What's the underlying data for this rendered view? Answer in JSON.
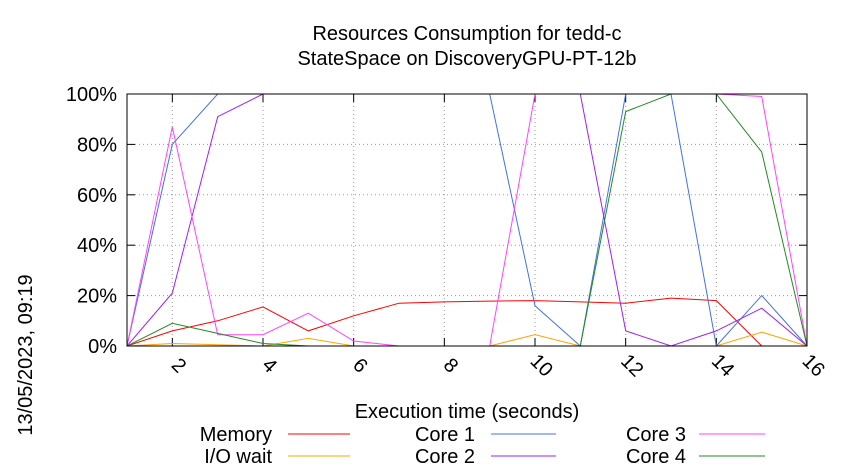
{
  "chart_data": {
    "type": "line",
    "title_lines": [
      "Resources Consumption for tedd-c",
      "StateSpace on DiscoveryGPU-PT-12b"
    ],
    "xlabel": "Execution time (seconds)",
    "ylabel": "",
    "side_label": "13/05/2023, 09:19",
    "xlim": [
      1,
      16
    ],
    "ylim": [
      0,
      100
    ],
    "grid": true,
    "legend_position": "bottom",
    "x_ticks": [
      2,
      4,
      6,
      8,
      10,
      12,
      14,
      16
    ],
    "y_ticks": [
      {
        "value": 0,
        "label": "0%"
      },
      {
        "value": 20,
        "label": "20%"
      },
      {
        "value": 40,
        "label": "40%"
      },
      {
        "value": 60,
        "label": "60%"
      },
      {
        "value": 80,
        "label": "80%"
      },
      {
        "value": 100,
        "label": "100%"
      }
    ],
    "x": [
      1,
      2,
      3,
      4,
      5,
      6,
      7,
      8,
      9,
      10,
      11,
      12,
      13,
      14,
      15,
      16
    ],
    "series": [
      {
        "name": "Memory",
        "color": "#ff0000",
        "values": [
          0,
          6,
          10,
          15.5,
          6,
          12,
          17,
          17.5,
          17.8,
          18,
          17.5,
          17,
          19,
          18,
          0,
          0
        ]
      },
      {
        "name": "I/O wait",
        "color": "#ffa500",
        "values": [
          0,
          1,
          0.5,
          0,
          3,
          0,
          0,
          0,
          0,
          4.5,
          0,
          0,
          0,
          0,
          5.5,
          0
        ]
      },
      {
        "name": "Core 1",
        "color": "#4472e0",
        "values": [
          0,
          80,
          100,
          100,
          100,
          100,
          100,
          100,
          100,
          16,
          0,
          100,
          100,
          0,
          20,
          0
        ]
      },
      {
        "name": "Core 2",
        "color": "#a020f0",
        "values": [
          0,
          21,
          91,
          100,
          100,
          100,
          100,
          100,
          100,
          100,
          100,
          6,
          0,
          6,
          15,
          0
        ]
      },
      {
        "name": "Core 3",
        "color": "#ff44ff",
        "values": [
          0,
          87,
          4.5,
          4.5,
          13,
          2,
          0,
          0,
          0,
          100,
          100,
          100,
          100,
          100,
          99,
          0
        ]
      },
      {
        "name": "Core 4",
        "color": "#228b22",
        "values": [
          0,
          9,
          5,
          1,
          0,
          0,
          0,
          0,
          0,
          0,
          0,
          93,
          100,
          100,
          77,
          0
        ]
      }
    ]
  }
}
